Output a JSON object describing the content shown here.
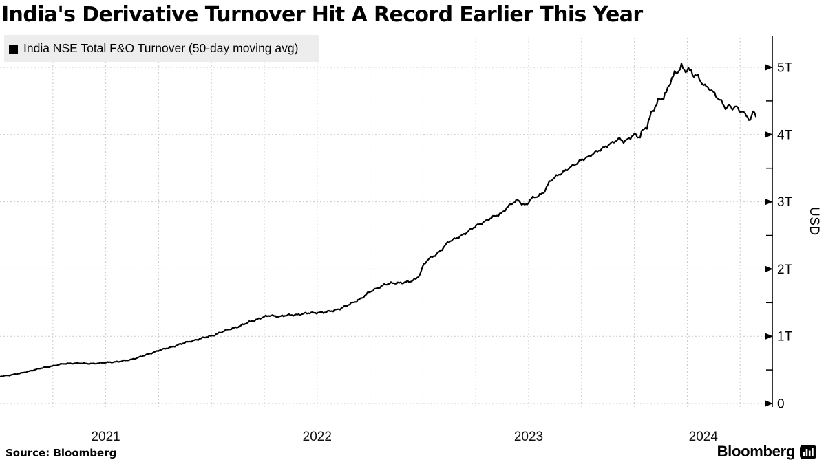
{
  "title": "India's Derivative Turnover Hit A Record Earlier This Year",
  "legend": {
    "label": "India NSE Total F&O Turnover (50-day moving avg)",
    "swatch_color": "#000000"
  },
  "source": "Source: Bloomberg",
  "brand": {
    "name": "Bloomberg",
    "icon": "bloomberg-bars-icon"
  },
  "y_axis": {
    "title": "USD",
    "tick_labels": [
      "0",
      "1T",
      "2T",
      "3T",
      "4T",
      "5T"
    ],
    "tick_values": [
      0,
      1,
      2,
      3,
      4,
      5
    ],
    "minor_tick_values": [
      0.5,
      1.5,
      2.5,
      3.5,
      4.5
    ],
    "range": [
      0,
      5.45
    ],
    "side": "right"
  },
  "x_axis": {
    "year_labels": [
      "2021",
      "2022",
      "2023",
      "2024"
    ],
    "range_years": [
      2021.0,
      2024.65
    ],
    "gridline_interval": "quarterly"
  },
  "colors": {
    "line": "#000000",
    "grid": "#c9c9c9",
    "legend_bg": "#ededed",
    "text": "#000000",
    "background": "#ffffff"
  },
  "chart_data": {
    "type": "line",
    "series_name": "India NSE Total F&O Turnover (50-day moving avg)",
    "unit": "trillion USD",
    "title": "India's Derivative Turnover Hit A Record Earlier This Year",
    "ylabel": "USD",
    "ylim": [
      0,
      5.45
    ],
    "xlim_years": [
      2021.0,
      2024.65
    ],
    "grid": "dashed, quarterly vertical + 1T horizontal",
    "legend_position": "top-left",
    "points_year_value": [
      [
        2021.0,
        0.4
      ],
      [
        2021.05,
        0.425
      ],
      [
        2021.1,
        0.45
      ],
      [
        2021.16,
        0.5
      ],
      [
        2021.21,
        0.535
      ],
      [
        2021.25,
        0.56
      ],
      [
        2021.29,
        0.585
      ],
      [
        2021.33,
        0.598
      ],
      [
        2021.37,
        0.6
      ],
      [
        2021.42,
        0.593
      ],
      [
        2021.47,
        0.6
      ],
      [
        2021.52,
        0.615
      ],
      [
        2021.57,
        0.625
      ],
      [
        2021.62,
        0.655
      ],
      [
        2021.67,
        0.7
      ],
      [
        2021.72,
        0.755
      ],
      [
        2021.75,
        0.79
      ],
      [
        2021.8,
        0.83
      ],
      [
        2021.85,
        0.88
      ],
      [
        2021.9,
        0.925
      ],
      [
        2021.94,
        0.96
      ],
      [
        2022.0,
        1.005
      ],
      [
        2022.04,
        1.055
      ],
      [
        2022.09,
        1.11
      ],
      [
        2022.14,
        1.16
      ],
      [
        2022.19,
        1.225
      ],
      [
        2022.24,
        1.28
      ],
      [
        2022.28,
        1.31
      ],
      [
        2022.32,
        1.295
      ],
      [
        2022.36,
        1.31
      ],
      [
        2022.41,
        1.325
      ],
      [
        2022.45,
        1.34
      ],
      [
        2022.5,
        1.355
      ],
      [
        2022.54,
        1.355
      ],
      [
        2022.58,
        1.385
      ],
      [
        2022.63,
        1.44
      ],
      [
        2022.67,
        1.5
      ],
      [
        2022.71,
        1.57
      ],
      [
        2022.75,
        1.66
      ],
      [
        2022.79,
        1.73
      ],
      [
        2022.82,
        1.77
      ],
      [
        2022.86,
        1.79
      ],
      [
        2022.9,
        1.8
      ],
      [
        2022.94,
        1.81
      ],
      [
        2022.97,
        1.86
      ],
      [
        2022.99,
        1.95
      ],
      [
        2023.0,
        2.05
      ],
      [
        2023.02,
        2.13
      ],
      [
        2023.06,
        2.21
      ],
      [
        2023.09,
        2.3
      ],
      [
        2023.12,
        2.4
      ],
      [
        2023.14,
        2.43
      ],
      [
        2023.17,
        2.48
      ],
      [
        2023.21,
        2.55
      ],
      [
        2023.26,
        2.66
      ],
      [
        2023.3,
        2.72
      ],
      [
        2023.33,
        2.77
      ],
      [
        2023.37,
        2.83
      ],
      [
        2023.4,
        2.92
      ],
      [
        2023.43,
        2.99
      ],
      [
        2023.45,
        3.03
      ],
      [
        2023.47,
        2.97
      ],
      [
        2023.49,
        2.95
      ],
      [
        2023.51,
        3.04
      ],
      [
        2023.54,
        3.08
      ],
      [
        2023.57,
        3.14
      ],
      [
        2023.6,
        3.3
      ],
      [
        2023.64,
        3.4
      ],
      [
        2023.68,
        3.48
      ],
      [
        2023.72,
        3.55
      ],
      [
        2023.75,
        3.63
      ],
      [
        2023.79,
        3.68
      ],
      [
        2023.82,
        3.74
      ],
      [
        2023.86,
        3.82
      ],
      [
        2023.9,
        3.88
      ],
      [
        2023.93,
        3.94
      ],
      [
        2023.95,
        3.9
      ],
      [
        2023.98,
        3.95
      ],
      [
        2024.0,
        4.0
      ],
      [
        2024.02,
        3.96
      ],
      [
        2024.04,
        4.06
      ],
      [
        2024.06,
        4.15
      ],
      [
        2024.08,
        4.3
      ],
      [
        2024.1,
        4.42
      ],
      [
        2024.12,
        4.52
      ],
      [
        2024.15,
        4.62
      ],
      [
        2024.17,
        4.8
      ],
      [
        2024.19,
        4.88
      ],
      [
        2024.21,
        4.95
      ],
      [
        2024.22,
        5.02
      ],
      [
        2024.24,
        4.96
      ],
      [
        2024.25,
        5.0
      ],
      [
        2024.27,
        4.92
      ],
      [
        2024.28,
        4.88
      ],
      [
        2024.3,
        4.87
      ],
      [
        2024.31,
        4.8
      ],
      [
        2024.33,
        4.74
      ],
      [
        2024.35,
        4.7
      ],
      [
        2024.37,
        4.64
      ],
      [
        2024.39,
        4.55
      ],
      [
        2024.41,
        4.5
      ],
      [
        2024.43,
        4.4
      ],
      [
        2024.45,
        4.44
      ],
      [
        2024.46,
        4.38
      ],
      [
        2024.48,
        4.42
      ],
      [
        2024.5,
        4.33
      ],
      [
        2024.51,
        4.36
      ],
      [
        2024.53,
        4.28
      ],
      [
        2024.55,
        4.22
      ],
      [
        2024.56,
        4.34
      ],
      [
        2024.575,
        4.28
      ]
    ]
  }
}
